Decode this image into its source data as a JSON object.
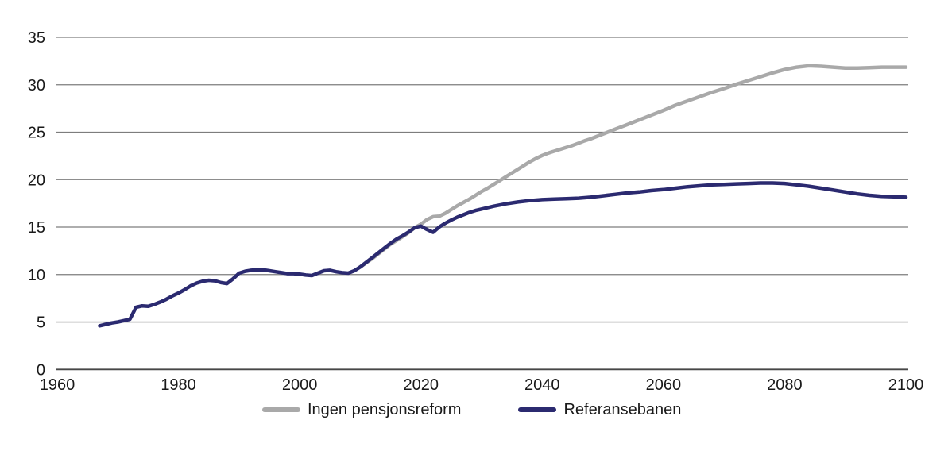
{
  "figure": {
    "background": "#ffffff",
    "tick_label_color": "#1a1a1a",
    "gridline_color": "#7d7d7d",
    "axis_line_color": "#474747"
  },
  "legend": {
    "items": [
      {
        "label": "Ingen pensjonsreform",
        "color": "#a9a9a9"
      },
      {
        "label": "Referansebanen",
        "color": "#2b2a70"
      }
    ]
  },
  "chart_data": {
    "type": "line",
    "title": "",
    "xlabel": "",
    "ylabel": "",
    "xlim": [
      1960,
      2100
    ],
    "ylim": [
      0,
      35
    ],
    "x_ticks": [
      1960,
      1980,
      2000,
      2020,
      2040,
      2060,
      2080,
      2100
    ],
    "y_ticks": [
      0,
      5,
      10,
      15,
      20,
      25,
      30,
      35
    ],
    "grid": "horizontal",
    "legend_position": "bottom-center",
    "series": [
      {
        "name": "Ingen pensjonsreform",
        "color": "#a9a9a9",
        "points": [
          [
            2010,
            10.8
          ],
          [
            2011,
            11.25
          ],
          [
            2012,
            11.7
          ],
          [
            2013,
            12.2
          ],
          [
            2014,
            12.7
          ],
          [
            2015,
            13.2
          ],
          [
            2016,
            13.6
          ],
          [
            2017,
            14.0
          ],
          [
            2018,
            14.45
          ],
          [
            2019,
            14.95
          ],
          [
            2020,
            15.3
          ],
          [
            2021,
            15.8
          ],
          [
            2022,
            16.1
          ],
          [
            2023,
            16.15
          ],
          [
            2024,
            16.45
          ],
          [
            2025,
            16.85
          ],
          [
            2026,
            17.25
          ],
          [
            2027,
            17.6
          ],
          [
            2028,
            17.95
          ],
          [
            2029,
            18.35
          ],
          [
            2030,
            18.75
          ],
          [
            2031,
            19.1
          ],
          [
            2032,
            19.5
          ],
          [
            2033,
            19.9
          ],
          [
            2034,
            20.3
          ],
          [
            2035,
            20.7
          ],
          [
            2036,
            21.1
          ],
          [
            2037,
            21.5
          ],
          [
            2038,
            21.9
          ],
          [
            2039,
            22.25
          ],
          [
            2040,
            22.55
          ],
          [
            2041,
            22.8
          ],
          [
            2042,
            23.0
          ],
          [
            2043,
            23.2
          ],
          [
            2044,
            23.4
          ],
          [
            2045,
            23.6
          ],
          [
            2046,
            23.85
          ],
          [
            2047,
            24.1
          ],
          [
            2048,
            24.3
          ],
          [
            2049,
            24.55
          ],
          [
            2050,
            24.8
          ],
          [
            2052,
            25.3
          ],
          [
            2054,
            25.8
          ],
          [
            2056,
            26.3
          ],
          [
            2058,
            26.8
          ],
          [
            2060,
            27.3
          ],
          [
            2062,
            27.85
          ],
          [
            2064,
            28.3
          ],
          [
            2066,
            28.75
          ],
          [
            2068,
            29.2
          ],
          [
            2070,
            29.6
          ],
          [
            2072,
            30.05
          ],
          [
            2074,
            30.45
          ],
          [
            2076,
            30.85
          ],
          [
            2078,
            31.25
          ],
          [
            2080,
            31.6
          ],
          [
            2082,
            31.85
          ],
          [
            2084,
            32.0
          ],
          [
            2086,
            31.95
          ],
          [
            2088,
            31.85
          ],
          [
            2090,
            31.75
          ],
          [
            2092,
            31.75
          ],
          [
            2094,
            31.8
          ],
          [
            2096,
            31.85
          ],
          [
            2098,
            31.85
          ],
          [
            2100,
            31.85
          ]
        ]
      },
      {
        "name": "Referansebanen",
        "color": "#2b2a70",
        "points": [
          [
            1967,
            4.6
          ],
          [
            1968,
            4.75
          ],
          [
            1969,
            4.9
          ],
          [
            1970,
            5.0
          ],
          [
            1971,
            5.15
          ],
          [
            1972,
            5.3
          ],
          [
            1973,
            6.55
          ],
          [
            1974,
            6.7
          ],
          [
            1975,
            6.65
          ],
          [
            1976,
            6.85
          ],
          [
            1977,
            7.1
          ],
          [
            1978,
            7.4
          ],
          [
            1979,
            7.75
          ],
          [
            1980,
            8.05
          ],
          [
            1981,
            8.4
          ],
          [
            1982,
            8.8
          ],
          [
            1983,
            9.1
          ],
          [
            1984,
            9.3
          ],
          [
            1985,
            9.4
          ],
          [
            1986,
            9.35
          ],
          [
            1987,
            9.15
          ],
          [
            1988,
            9.05
          ],
          [
            1989,
            9.55
          ],
          [
            1990,
            10.15
          ],
          [
            1991,
            10.35
          ],
          [
            1992,
            10.45
          ],
          [
            1993,
            10.5
          ],
          [
            1994,
            10.5
          ],
          [
            1995,
            10.4
          ],
          [
            1996,
            10.3
          ],
          [
            1997,
            10.2
          ],
          [
            1998,
            10.1
          ],
          [
            1999,
            10.1
          ],
          [
            2000,
            10.05
          ],
          [
            2001,
            9.95
          ],
          [
            2002,
            9.9
          ],
          [
            2003,
            10.15
          ],
          [
            2004,
            10.4
          ],
          [
            2005,
            10.45
          ],
          [
            2006,
            10.3
          ],
          [
            2007,
            10.2
          ],
          [
            2008,
            10.15
          ],
          [
            2009,
            10.4
          ],
          [
            2010,
            10.8
          ],
          [
            2011,
            11.3
          ],
          [
            2012,
            11.8
          ],
          [
            2013,
            12.3
          ],
          [
            2014,
            12.8
          ],
          [
            2015,
            13.3
          ],
          [
            2016,
            13.75
          ],
          [
            2017,
            14.1
          ],
          [
            2018,
            14.5
          ],
          [
            2019,
            14.95
          ],
          [
            2020,
            15.1
          ],
          [
            2021,
            14.75
          ],
          [
            2022,
            14.45
          ],
          [
            2023,
            15.0
          ],
          [
            2024,
            15.4
          ],
          [
            2025,
            15.75
          ],
          [
            2026,
            16.05
          ],
          [
            2027,
            16.3
          ],
          [
            2028,
            16.55
          ],
          [
            2029,
            16.75
          ],
          [
            2030,
            16.9
          ],
          [
            2032,
            17.2
          ],
          [
            2034,
            17.45
          ],
          [
            2036,
            17.65
          ],
          [
            2038,
            17.8
          ],
          [
            2040,
            17.9
          ],
          [
            2042,
            17.95
          ],
          [
            2044,
            18.0
          ],
          [
            2046,
            18.05
          ],
          [
            2048,
            18.15
          ],
          [
            2050,
            18.3
          ],
          [
            2052,
            18.45
          ],
          [
            2054,
            18.6
          ],
          [
            2056,
            18.7
          ],
          [
            2058,
            18.85
          ],
          [
            2060,
            18.95
          ],
          [
            2062,
            19.1
          ],
          [
            2064,
            19.25
          ],
          [
            2066,
            19.35
          ],
          [
            2068,
            19.45
          ],
          [
            2070,
            19.5
          ],
          [
            2072,
            19.55
          ],
          [
            2074,
            19.6
          ],
          [
            2076,
            19.65
          ],
          [
            2078,
            19.65
          ],
          [
            2080,
            19.6
          ],
          [
            2082,
            19.45
          ],
          [
            2084,
            19.3
          ],
          [
            2086,
            19.1
          ],
          [
            2088,
            18.9
          ],
          [
            2090,
            18.7
          ],
          [
            2092,
            18.5
          ],
          [
            2094,
            18.35
          ],
          [
            2096,
            18.25
          ],
          [
            2098,
            18.2
          ],
          [
            2100,
            18.15
          ]
        ]
      }
    ]
  }
}
